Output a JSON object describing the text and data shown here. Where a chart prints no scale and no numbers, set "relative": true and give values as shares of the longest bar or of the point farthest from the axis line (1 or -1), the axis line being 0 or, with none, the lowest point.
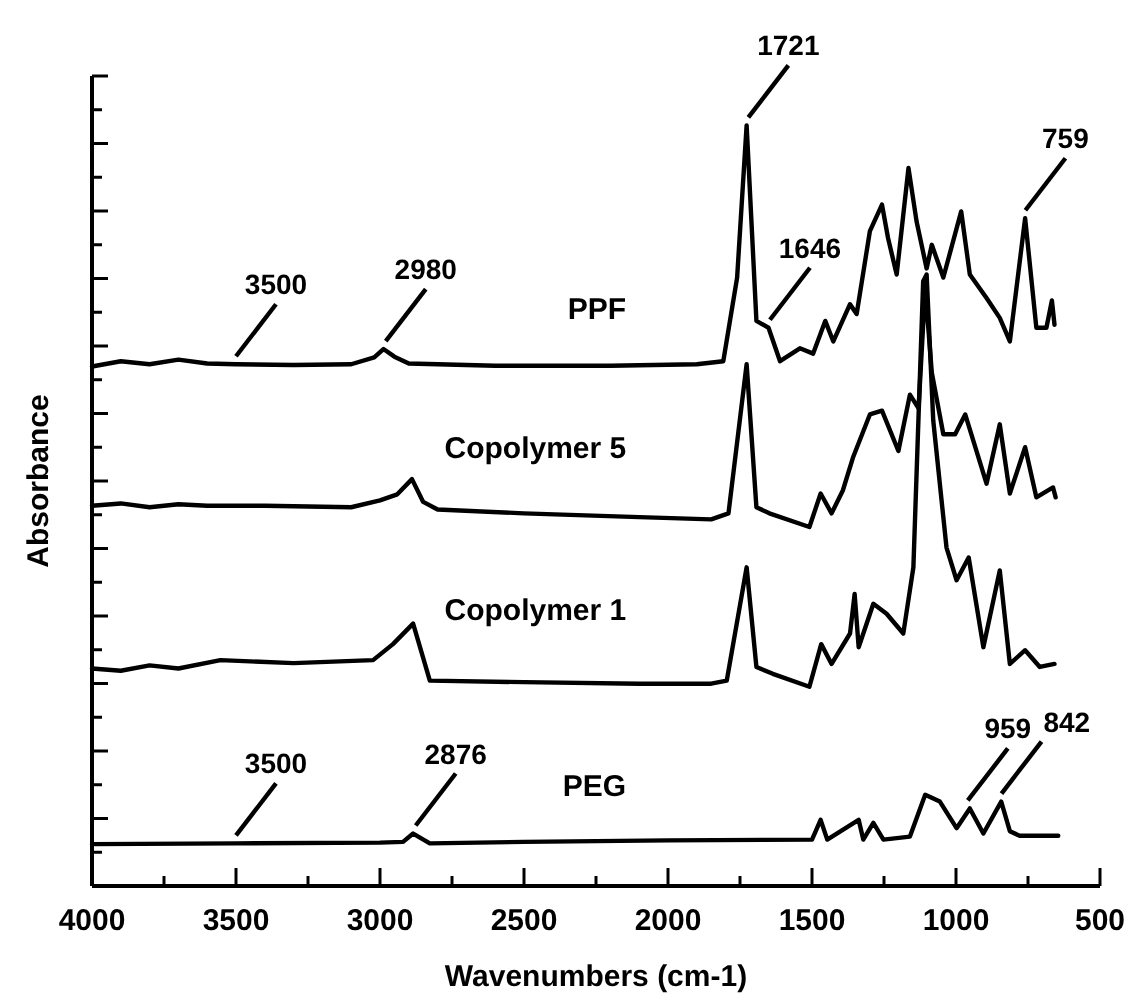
{
  "chart_data": {
    "type": "line",
    "relative": true,
    "xlabel": "Wavenumbers (cm-1)",
    "ylabel": "Absorbance",
    "xlim": [
      4000,
      500
    ],
    "xticks": [
      4000,
      {
        "value": 3750,
        "label": null
      },
      3500,
      {
        "value": 3250,
        "label": null
      },
      3000,
      {
        "value": 2750,
        "label": null
      },
      2500,
      {
        "value": 2250,
        "label": null
      },
      2000,
      {
        "value": 1750,
        "label": null
      },
      1500,
      {
        "value": 1250,
        "label": null
      },
      1000,
      {
        "value": 750,
        "label": null
      },
      500
    ],
    "grid": false,
    "series": [
      {
        "name": "PPF",
        "color": "#000000",
        "x": [
          4000,
          3900,
          3800,
          3700,
          3600,
          3500,
          3300,
          3100,
          3020,
          2988,
          2950,
          2900,
          2600,
          2200,
          1900,
          1808,
          1760,
          1727,
          1693,
          1651,
          1611,
          1542,
          1496,
          1454,
          1426,
          1368,
          1345,
          1299,
          1257,
          1236,
          1206,
          1165,
          1137,
          1102,
          1084,
          1044,
          982,
          952,
          894,
          848,
          813,
          760,
          721,
          686,
          667,
          658
        ],
        "values": [
          0.683,
          0.69,
          0.686,
          0.692,
          0.687,
          0.686,
          0.685,
          0.686,
          0.695,
          0.706,
          0.696,
          0.687,
          0.684,
          0.684,
          0.686,
          0.69,
          0.8,
          1.0,
          0.743,
          0.734,
          0.69,
          0.707,
          0.7,
          0.743,
          0.716,
          0.765,
          0.752,
          0.861,
          0.896,
          0.852,
          0.804,
          0.944,
          0.874,
          0.812,
          0.843,
          0.8,
          0.887,
          0.804,
          0.773,
          0.747,
          0.716,
          0.878,
          0.734,
          0.734,
          0.77,
          0.738
        ]
      },
      {
        "name": "Copolymer 5",
        "color": "#000000",
        "x": [
          4000,
          3900,
          3800,
          3700,
          3600,
          3400,
          3100,
          3000,
          2940,
          2889,
          2850,
          2800,
          2500,
          2100,
          1850,
          1790,
          1727,
          1693,
          1648,
          1509,
          1470,
          1432,
          1393,
          1358,
          1299,
          1257,
          1200,
          1160,
          1130,
          1107,
          1084,
          1044,
          1003,
          968,
          894,
          848,
          813,
          760,
          721,
          663,
          654
        ],
        "values": [
          0.5,
          0.503,
          0.498,
          0.502,
          0.5,
          0.5,
          0.498,
          0.507,
          0.515,
          0.535,
          0.505,
          0.495,
          0.49,
          0.485,
          0.482,
          0.49,
          0.686,
          0.498,
          0.49,
          0.472,
          0.516,
          0.49,
          0.52,
          0.563,
          0.62,
          0.625,
          0.572,
          0.646,
          0.628,
          0.786,
          0.675,
          0.594,
          0.594,
          0.62,
          0.529,
          0.607,
          0.516,
          0.577,
          0.511,
          0.524,
          0.511
        ]
      },
      {
        "name": "Copolymer 1",
        "color": "#000000",
        "x": [
          4000,
          3900,
          3800,
          3700,
          3554,
          3300,
          3024,
          2955,
          2885,
          2827,
          2500,
          2100,
          1850,
          1796,
          1727,
          1693,
          1636,
          1509,
          1468,
          1432,
          1368,
          1352,
          1338,
          1287,
          1241,
          1183,
          1148,
          1114,
          1102,
          1079,
          1033,
          998,
          956,
          905,
          848,
          813,
          760,
          709,
          658
        ],
        "values": [
          0.286,
          0.283,
          0.29,
          0.286,
          0.297,
          0.293,
          0.297,
          0.318,
          0.345,
          0.27,
          0.268,
          0.266,
          0.266,
          0.27,
          0.419,
          0.288,
          0.279,
          0.262,
          0.318,
          0.292,
          0.332,
          0.384,
          0.314,
          0.371,
          0.358,
          0.332,
          0.419,
          0.795,
          0.804,
          0.612,
          0.445,
          0.402,
          0.432,
          0.314,
          0.415,
          0.292,
          0.31,
          0.288,
          0.292
        ]
      },
      {
        "name": "PEG",
        "color": "#000000",
        "x": [
          4000,
          3500,
          3000,
          2920,
          2885,
          2827,
          2500,
          2000,
          1500,
          1470,
          1447,
          1338,
          1322,
          1287,
          1252,
          1160,
          1107,
          1056,
          998,
          952,
          905,
          843,
          813,
          779,
          645
        ],
        "values": [
          0.055,
          0.056,
          0.057,
          0.058,
          0.069,
          0.056,
          0.058,
          0.06,
          0.061,
          0.087,
          0.061,
          0.087,
          0.061,
          0.083,
          0.061,
          0.065,
          0.12,
          0.111,
          0.076,
          0.102,
          0.069,
          0.111,
          0.072,
          0.066,
          0.066
        ]
      }
    ],
    "annotations": [
      {
        "text": "3500",
        "x": 3500,
        "y": 0.686
      },
      {
        "text": "2980",
        "x": 2980,
        "y": 0.706
      },
      {
        "text": "1721",
        "x": 1721,
        "y": 1.0
      },
      {
        "text": "1646",
        "x": 1646,
        "y": 0.734
      },
      {
        "text": "759",
        "x": 759,
        "y": 0.878
      },
      {
        "text": "3500",
        "x": 3500,
        "y": 0.056
      },
      {
        "text": "2876",
        "x": 2876,
        "y": 0.069
      },
      {
        "text": "959",
        "x": 959,
        "y": 0.102
      },
      {
        "text": "842",
        "x": 842,
        "y": 0.111
      }
    ]
  }
}
